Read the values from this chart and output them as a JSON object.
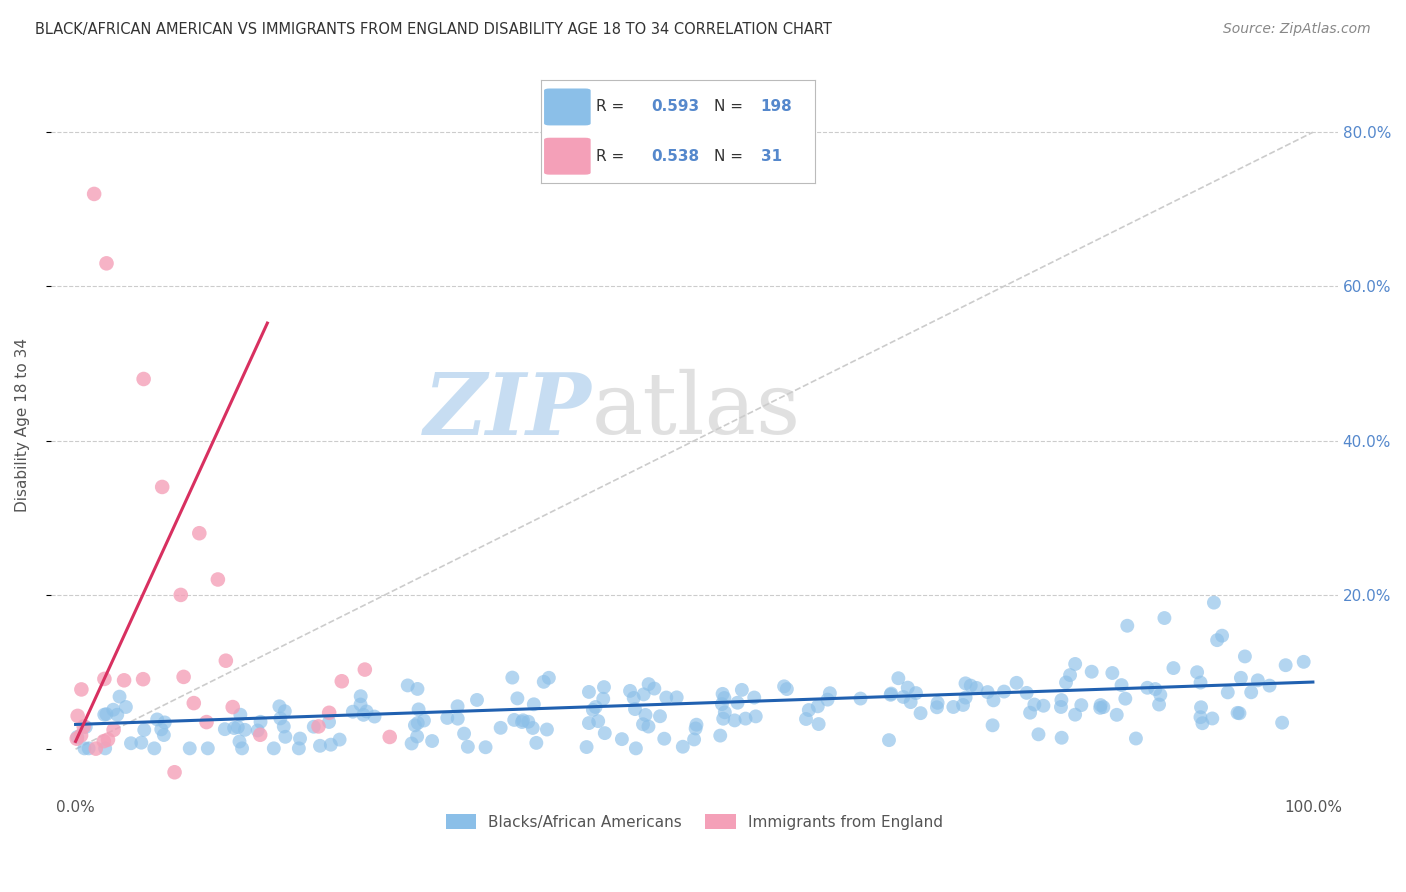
{
  "title": "BLACK/AFRICAN AMERICAN VS IMMIGRANTS FROM ENGLAND DISABILITY AGE 18 TO 34 CORRELATION CHART",
  "source": "Source: ZipAtlas.com",
  "ylabel": "Disability Age 18 to 34",
  "ytick_vals": [
    0.0,
    0.2,
    0.4,
    0.6,
    0.8
  ],
  "ytick_labels_right": [
    "",
    "20.0%",
    "40.0%",
    "60.0%",
    "80.0%"
  ],
  "xlim": [
    -0.02,
    1.02
  ],
  "ylim": [
    -0.06,
    0.9
  ],
  "blue_R": 0.593,
  "blue_N": 198,
  "pink_R": 0.538,
  "pink_N": 31,
  "blue_color": "#8bbfe8",
  "pink_color": "#f4a0b8",
  "blue_line_color": "#2060b0",
  "pink_line_color": "#d83060",
  "legend_labels": [
    "Blacks/African Americans",
    "Immigrants from England"
  ],
  "background_color": "#ffffff",
  "grid_color": "#cccccc",
  "watermark_zip_color": "#bdd8f0",
  "watermark_atlas_color": "#c8c8c8"
}
